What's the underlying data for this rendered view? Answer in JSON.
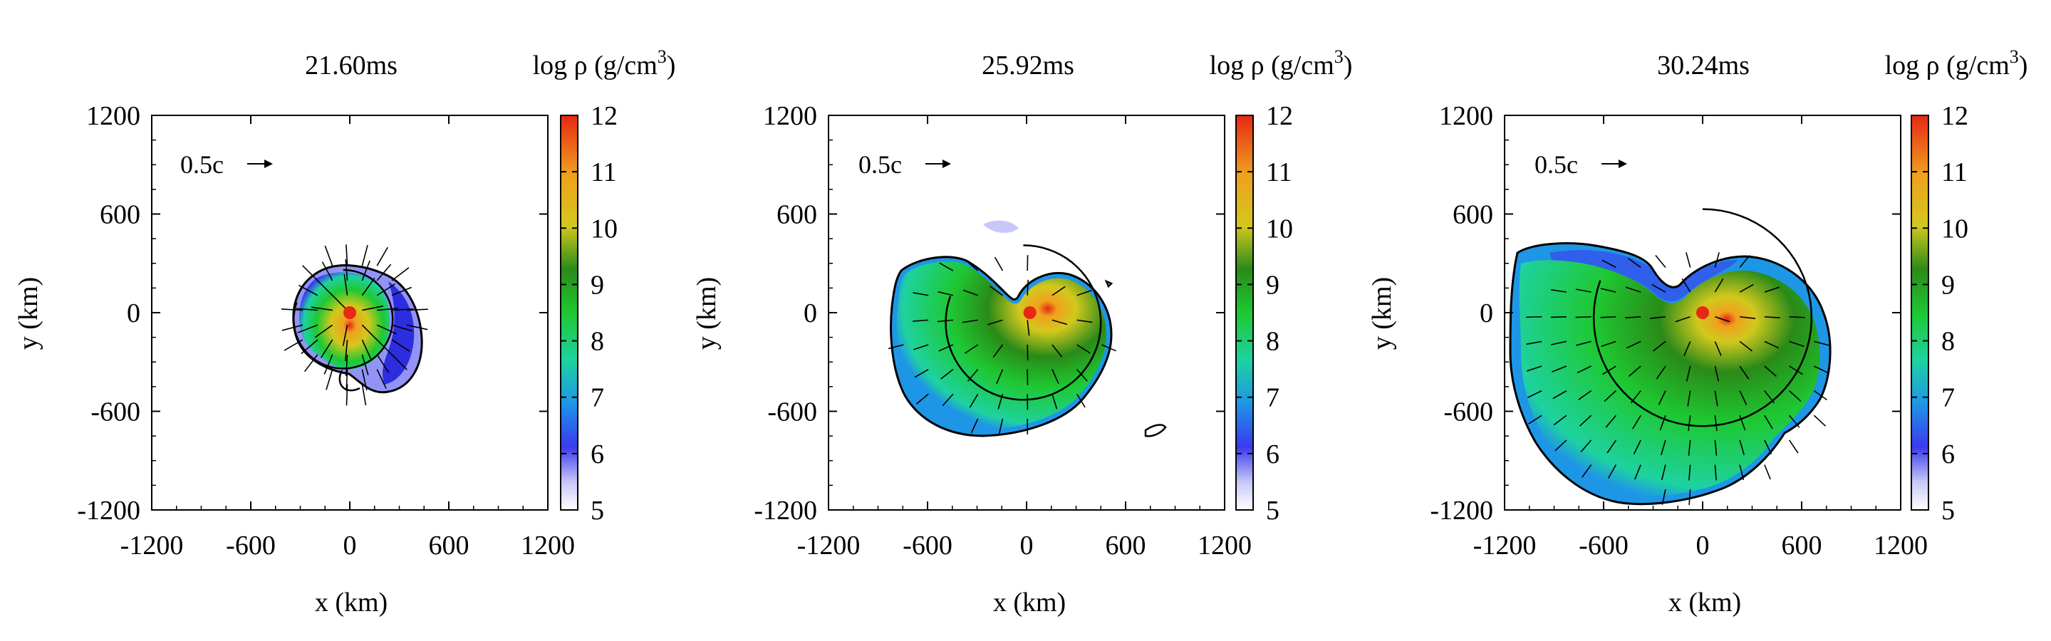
{
  "chart_data": [
    {
      "type": "heatmap",
      "title": "21.60ms",
      "colorbar_label_main": "log ρ (g/cm",
      "colorbar_label_sup": "3",
      "colorbar_label_close": ")",
      "xlabel": "x (km)",
      "ylabel": "y (km)",
      "xlim": [
        -1200,
        1200
      ],
      "ylim": [
        -1200,
        1200
      ],
      "xticks": [
        "-1200",
        "-600",
        "0",
        "600",
        "1200"
      ],
      "yticks": [
        "1200",
        "600",
        "0",
        "-600",
        "-1200"
      ],
      "cbar_range": [
        5,
        12
      ],
      "cbar_ticks": [
        "12",
        "11",
        "10",
        "9",
        "8",
        "7",
        "6",
        "5"
      ],
      "velocity_scale_label": "0.5c",
      "ejecta_extent_km": {
        "x_min": -330,
        "x_max": 380,
        "y_min": -480,
        "y_max": 390
      },
      "core_position_km": [
        0,
        0
      ],
      "core_log_rho": 12,
      "shock_radius_km": 300
    },
    {
      "type": "heatmap",
      "title": "25.92ms",
      "colorbar_label_main": "log ρ (g/cm",
      "colorbar_label_sup": "3",
      "colorbar_label_close": ")",
      "xlabel": "x (km)",
      "ylabel": "y (km)",
      "xlim": [
        -1200,
        1200
      ],
      "ylim": [
        -1200,
        1200
      ],
      "xticks": [
        "-1200",
        "-600",
        "0",
        "600",
        "1200"
      ],
      "yticks": [
        "1200",
        "600",
        "0",
        "-600",
        "-1200"
      ],
      "cbar_range": [
        5,
        12
      ],
      "cbar_ticks": [
        "12",
        "11",
        "10",
        "9",
        "8",
        "7",
        "6",
        "5"
      ],
      "velocity_scale_label": "0.5c",
      "ejecta_extent_km": {
        "x_min": -820,
        "x_max": 520,
        "y_min": -720,
        "y_max": 360
      },
      "core_position_km": [
        20,
        0
      ],
      "core_log_rho": 12,
      "shock_radius_km": 470
    },
    {
      "type": "heatmap",
      "title": "30.24ms",
      "colorbar_label_main": "log ρ (g/cm",
      "colorbar_label_sup": "3",
      "colorbar_label_close": ")",
      "xlabel": "x (km)",
      "ylabel": "y (km)",
      "xlim": [
        -1200,
        1200
      ],
      "ylim": [
        -1200,
        1200
      ],
      "xticks": [
        "-1200",
        "-600",
        "0",
        "600",
        "1200"
      ],
      "yticks": [
        "1200",
        "600",
        "0",
        "-600",
        "-1200"
      ],
      "cbar_range": [
        5,
        12
      ],
      "cbar_ticks": [
        "12",
        "11",
        "10",
        "9",
        "8",
        "7",
        "6",
        "5"
      ],
      "velocity_scale_label": "0.5c",
      "ejecta_extent_km": {
        "x_min": -1200,
        "x_max": 820,
        "y_min": -1150,
        "y_max": 420
      },
      "core_position_km": [
        0,
        0
      ],
      "core_log_rho": 12,
      "shock_radius_km": 660
    }
  ],
  "colors": {
    "colormap": [
      "#ffffff",
      "#3a3aee",
      "#1e96e6",
      "#1ed2a0",
      "#1ec832",
      "#2a8a18",
      "#d2c81e",
      "#f0a01e",
      "#e62814"
    ],
    "shock_line": "#000000",
    "ejecta_edge": "#000000"
  }
}
